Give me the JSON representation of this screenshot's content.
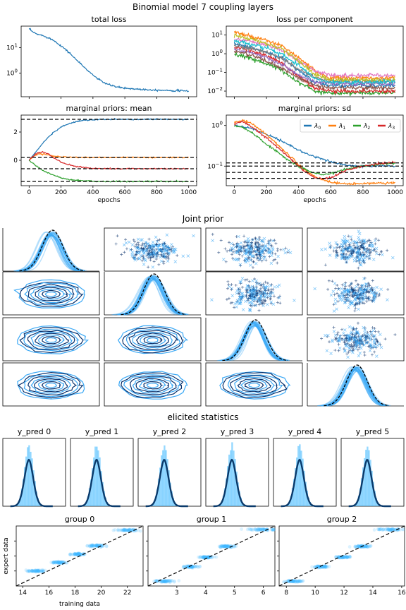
{
  "figure": {
    "title": "Binomial model 7 coupling layers",
    "section_joint": "Joint prior",
    "section_elicited": "elicited statistics"
  },
  "colors": {
    "loss_blue": "#1f77b4",
    "prior_dark": "#08306b",
    "prior_light": "#3aa8f5",
    "hist_fill": "#3eb8ff",
    "kde_line": "#0a3a6b",
    "lambda0": "#1f77b4",
    "lambda1": "#ff7f0e",
    "lambda2": "#2ca02c",
    "lambda3": "#d62728"
  },
  "chart_data": [
    {
      "id": "total_loss",
      "type": "line",
      "title": "total loss",
      "xlabel": "",
      "ylabel": "",
      "yscale": "log",
      "xlim": [
        -50,
        1050
      ],
      "ylim": [
        0.12,
        70
      ],
      "yticks": [
        1,
        10
      ],
      "yticklabels": [
        "10^0",
        "10^1"
      ],
      "series": [
        {
          "x": [
            0,
            25,
            50,
            100,
            150,
            200,
            250,
            300,
            350,
            400,
            450,
            500,
            550,
            600,
            650,
            700,
            750,
            800,
            850,
            900,
            950,
            1000
          ],
          "y": [
            55,
            40,
            34,
            28,
            20,
            12,
            6.5,
            3.2,
            1.6,
            0.85,
            0.5,
            0.35,
            0.29,
            0.26,
            0.245,
            0.235,
            0.225,
            0.22,
            0.215,
            0.21,
            0.205,
            0.2
          ]
        }
      ]
    },
    {
      "id": "loss_per_component",
      "type": "line",
      "title": "loss per component",
      "yscale": "log",
      "xlim": [
        -50,
        1050
      ],
      "ylim": [
        0.005,
        30
      ],
      "yticks": [
        0.01,
        0.1,
        1,
        10
      ],
      "yticklabels": [
        "10^-2",
        "10^-1",
        "10^0",
        "10^1"
      ],
      "series": [
        {
          "color": "#1f77b4",
          "x": [
            0,
            100,
            200,
            300,
            400,
            500,
            600,
            1000
          ],
          "y": [
            3.5,
            2.2,
            1.2,
            0.6,
            0.12,
            0.03,
            0.02,
            0.02
          ]
        },
        {
          "color": "#ff7f0e",
          "x": [
            0,
            100,
            200,
            300,
            400,
            500,
            600,
            1000
          ],
          "y": [
            15,
            8,
            5,
            2.5,
            0.6,
            0.12,
            0.05,
            0.05
          ]
        },
        {
          "color": "#2ca02c",
          "x": [
            0,
            100,
            200,
            300,
            400,
            500,
            600,
            1000
          ],
          "y": [
            0.9,
            0.6,
            0.3,
            0.12,
            0.03,
            0.01,
            0.008,
            0.008
          ]
        },
        {
          "color": "#d62728",
          "x": [
            0,
            100,
            200,
            300,
            400,
            500,
            600,
            1000
          ],
          "y": [
            2.5,
            1.4,
            0.8,
            0.3,
            0.06,
            0.015,
            0.01,
            0.01
          ]
        },
        {
          "color": "#9467bd",
          "x": [
            0,
            100,
            200,
            300,
            400,
            500,
            600,
            1000
          ],
          "y": [
            1.8,
            1.2,
            0.6,
            0.25,
            0.07,
            0.03,
            0.025,
            0.025
          ]
        },
        {
          "color": "#8c564b",
          "x": [
            0,
            100,
            200,
            300,
            400,
            500,
            600,
            1000
          ],
          "y": [
            1.4,
            0.9,
            0.4,
            0.15,
            0.05,
            0.02,
            0.015,
            0.015
          ]
        },
        {
          "color": "#e377c2",
          "x": [
            0,
            100,
            200,
            300,
            400,
            500,
            600,
            1000
          ],
          "y": [
            6,
            4.5,
            3,
            1.5,
            0.4,
            0.12,
            0.07,
            0.07
          ]
        },
        {
          "color": "#7f7f7f",
          "x": [
            0,
            100,
            200,
            300,
            400,
            500,
            600,
            1000
          ],
          "y": [
            2.8,
            2,
            1.2,
            0.55,
            0.15,
            0.05,
            0.035,
            0.035
          ]
        },
        {
          "color": "#bcbd22",
          "x": [
            0,
            100,
            200,
            300,
            400,
            500,
            600,
            1000
          ],
          "y": [
            10,
            6,
            3.5,
            1.8,
            0.4,
            0.08,
            0.04,
            0.04
          ]
        },
        {
          "color": "#17becf",
          "x": [
            0,
            100,
            200,
            300,
            400,
            500,
            600,
            1000
          ],
          "y": [
            5,
            3.2,
            2,
            0.9,
            0.25,
            0.05,
            0.03,
            0.03
          ]
        }
      ]
    },
    {
      "id": "marginal_mean",
      "type": "line",
      "title": "marginal priors: mean",
      "xlabel": "epochs",
      "xlim": [
        -50,
        1050
      ],
      "ylim": [
        -1.8,
        3.2
      ],
      "xticks": [
        0,
        200,
        400,
        600,
        800,
        1000
      ],
      "yticks": [
        -2,
        0,
        2
      ],
      "hlines": [
        2.9,
        0.2,
        -0.6,
        -1.5
      ],
      "series": [
        {
          "name": "λ0",
          "color": "#1f77b4",
          "x": [
            0,
            50,
            100,
            150,
            200,
            250,
            300,
            350,
            400,
            450,
            500,
            600,
            800,
            1000
          ],
          "y": [
            0,
            0.7,
            1.4,
            1.95,
            2.35,
            2.6,
            2.75,
            2.83,
            2.87,
            2.89,
            2.9,
            2.9,
            2.9,
            2.9
          ]
        },
        {
          "name": "λ1",
          "color": "#ff7f0e",
          "x": [
            0,
            30,
            60,
            100,
            150,
            200,
            300,
            400,
            600,
            800,
            1000
          ],
          "y": [
            0,
            0.3,
            0.45,
            0.42,
            0.3,
            0.24,
            0.2,
            0.2,
            0.2,
            0.2,
            0.2
          ]
        },
        {
          "name": "λ2",
          "color": "#2ca02c",
          "x": [
            0,
            50,
            100,
            150,
            200,
            250,
            300,
            400,
            500,
            600,
            800,
            1000
          ],
          "y": [
            0,
            -0.45,
            -0.8,
            -1.05,
            -1.25,
            -1.37,
            -1.43,
            -1.48,
            -1.5,
            -1.5,
            -1.5,
            -1.5
          ]
        },
        {
          "name": "λ3",
          "color": "#d62728",
          "x": [
            0,
            40,
            80,
            120,
            160,
            200,
            300,
            400,
            600,
            800,
            1000
          ],
          "y": [
            0,
            0.45,
            0.6,
            0.45,
            0.15,
            -0.15,
            -0.45,
            -0.58,
            -0.6,
            -0.6,
            -0.6
          ]
        }
      ]
    },
    {
      "id": "marginal_sd",
      "type": "line",
      "title": "marginal priors: sd",
      "xlabel": "epochs",
      "yscale": "log",
      "xlim": [
        -50,
        1050
      ],
      "ylim": [
        0.033,
        1.8
      ],
      "xticks": [
        0,
        200,
        400,
        600,
        800,
        1000
      ],
      "yticks": [
        0.1,
        1
      ],
      "yticklabels": [
        "10^-1",
        "10^0"
      ],
      "hlines": [
        0.12,
        0.1,
        0.07,
        0.05
      ],
      "legend": {
        "entries": [
          "λ0",
          "λ1",
          "λ2",
          "λ3"
        ],
        "position": "top-right",
        "ncol": 4
      },
      "series": [
        {
          "name": "λ0",
          "color": "#1f77b4",
          "x": [
            0,
            50,
            100,
            150,
            200,
            250,
            300,
            350,
            400,
            450,
            500,
            550,
            600,
            650,
            700,
            750,
            800,
            900,
            1000
          ],
          "y": [
            1.0,
            0.95,
            0.85,
            0.72,
            0.6,
            0.5,
            0.4,
            0.32,
            0.25,
            0.2,
            0.17,
            0.15,
            0.13,
            0.115,
            0.105,
            0.1,
            0.1,
            0.1,
            0.1
          ]
        },
        {
          "name": "λ1",
          "color": "#ff7f0e",
          "x": [
            0,
            50,
            100,
            150,
            200,
            250,
            300,
            350,
            400,
            450,
            500,
            550,
            600,
            650,
            700,
            800,
            900,
            1000
          ],
          "y": [
            1.2,
            1.35,
            1.15,
            0.85,
            0.6,
            0.4,
            0.26,
            0.17,
            0.11,
            0.075,
            0.055,
            0.045,
            0.04,
            0.038,
            0.037,
            0.037,
            0.038,
            0.039
          ]
        },
        {
          "name": "λ2",
          "color": "#2ca02c",
          "x": [
            0,
            50,
            100,
            150,
            200,
            250,
            300,
            350,
            400,
            450,
            500,
            550,
            600,
            650,
            700,
            800,
            900,
            1000
          ],
          "y": [
            1.0,
            0.9,
            0.7,
            0.5,
            0.35,
            0.25,
            0.18,
            0.13,
            0.1,
            0.08,
            0.068,
            0.062,
            0.065,
            0.075,
            0.085,
            0.1,
            0.11,
            0.12
          ]
        },
        {
          "name": "λ3",
          "color": "#d62728",
          "x": [
            0,
            50,
            100,
            150,
            200,
            250,
            300,
            350,
            400,
            450,
            500,
            550,
            600,
            650,
            700,
            800,
            900,
            1000
          ],
          "y": [
            1.1,
            1.25,
            0.95,
            0.7,
            0.5,
            0.34,
            0.23,
            0.15,
            0.1,
            0.07,
            0.052,
            0.048,
            0.052,
            0.065,
            0.08,
            0.1,
            0.115,
            0.125
          ]
        }
      ]
    },
    {
      "id": "joint_prior",
      "type": "scatter",
      "layout": "4x4 pair grid",
      "diagonal": "density",
      "upper": "scatter (+ and x markers)",
      "lower": "kde contours"
    },
    {
      "id": "elicited_y_pred",
      "type": "histogram",
      "panels": [
        {
          "title": "y_pred 0"
        },
        {
          "title": "y_pred 1"
        },
        {
          "title": "y_pred 2"
        },
        {
          "title": "y_pred 3"
        },
        {
          "title": "y_pred 4"
        },
        {
          "title": "y_pred 5"
        }
      ]
    },
    {
      "id": "group_scatter",
      "type": "scatter",
      "ylabel": "expert data",
      "xlabel": "training data",
      "panels": [
        {
          "title": "group 0",
          "xlim": [
            13.5,
            23.2
          ],
          "xticks": [
            14,
            16,
            18,
            20,
            22
          ],
          "clusters": [
            [
              15.0,
              0.25,
              1.3
            ],
            [
              16.7,
              0.39,
              0.9
            ],
            [
              18.2,
              0.53,
              0.9
            ],
            [
              19.7,
              0.67,
              1.0
            ],
            [
              22.0,
              0.93,
              1.6
            ]
          ]
        },
        {
          "title": "group 1",
          "xlim": [
            2.0,
            6.4
          ],
          "xticks": [
            3,
            4,
            5,
            6
          ],
          "clusters": [
            [
              2.6,
              0.08,
              0.6
            ],
            [
              3.5,
              0.32,
              0.5
            ],
            [
              4.05,
              0.48,
              0.5
            ],
            [
              4.75,
              0.66,
              0.55
            ],
            [
              5.9,
              0.94,
              1.0
            ]
          ]
        },
        {
          "title": "group 2",
          "xlim": [
            7.5,
            16.2
          ],
          "xticks": [
            8,
            10,
            12,
            14,
            16
          ],
          "clusters": [
            [
              8.6,
              0.08,
              1.2
            ],
            [
              10.4,
              0.32,
              0.9
            ],
            [
              11.9,
              0.48,
              0.9
            ],
            [
              13.3,
              0.66,
              1.0
            ],
            [
              15.3,
              0.94,
              1.6
            ]
          ]
        }
      ]
    }
  ]
}
